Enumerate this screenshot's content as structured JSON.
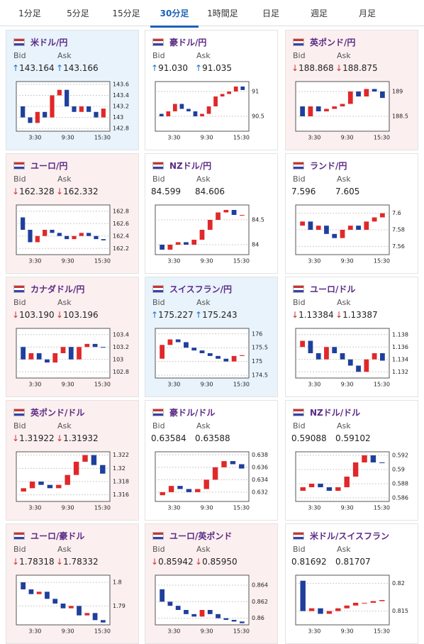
{
  "tabs": [
    "1分足",
    "5分足",
    "15分足",
    "30分足",
    "1時間足",
    "日足",
    "週足",
    "月足"
  ],
  "active_tab": 3,
  "panels": [
    {
      "title": "米ドル/円",
      "background": "#e8f3fc",
      "bid_label": "Bid",
      "ask_label": "Ask",
      "trend": "↑",
      "bid": "143.164",
      "ask": "143.166",
      "chart": {
        "ylim": [
          142.75,
          143.65
        ],
        "yticks": [
          142.8,
          143,
          143.2,
          143.4,
          143.6
        ],
        "x_labels": [
          "3:30",
          "9:30",
          "15:30"
        ],
        "closes": [
          143.2,
          143.0,
          142.9,
          143.1,
          143.0,
          143.4,
          143.5,
          143.2,
          143.1,
          143.2,
          143.1,
          143.0,
          143.16
        ]
      }
    },
    {
      "title": "豪ドル/円",
      "background": "#ffffff",
      "bid_label": "Bid",
      "ask_label": "Ask",
      "trend": "↑",
      "bid": "91.030",
      "ask": "91.035",
      "chart": {
        "ylim": [
          90.2,
          91.2
        ],
        "yticks": [
          90.5,
          91
        ],
        "x_labels": [
          "3:30",
          "9:30",
          "15:30"
        ],
        "closes": [
          90.55,
          90.5,
          90.6,
          90.75,
          90.65,
          90.6,
          90.5,
          90.55,
          90.7,
          90.9,
          90.95,
          91.0,
          91.1,
          91.03
        ]
      }
    },
    {
      "title": "英ポンド/円",
      "background": "#fcefef",
      "bid_label": "Bid",
      "ask_label": "Ask",
      "trend": "↓",
      "bid": "188.868",
      "ask": "188.875",
      "chart": {
        "ylim": [
          188.2,
          189.2
        ],
        "yticks": [
          188.5,
          189
        ],
        "x_labels": [
          "3:30",
          "9:30",
          "15:30"
        ],
        "closes": [
          188.7,
          188.5,
          188.7,
          188.6,
          188.65,
          188.7,
          188.75,
          189.0,
          188.9,
          189.05,
          189.0,
          188.87
        ]
      }
    },
    {
      "title": "ユーロ/円",
      "background": "#fcefef",
      "bid_label": "Bid",
      "ask_label": "Ask",
      "trend": "↓",
      "bid": "162.328",
      "ask": "162.332",
      "chart": {
        "ylim": [
          162.1,
          162.9
        ],
        "yticks": [
          162.2,
          162.4,
          162.6,
          162.8
        ],
        "x_labels": [
          "3:30",
          "9:30",
          "15:30"
        ],
        "closes": [
          162.7,
          162.5,
          162.3,
          162.4,
          162.5,
          162.45,
          162.4,
          162.35,
          162.4,
          162.45,
          162.4,
          162.35,
          162.33
        ]
      }
    },
    {
      "title": "NZドル/円",
      "background": "#ffffff",
      "bid_label": "Bid",
      "ask_label": "Ask",
      "bid": "84.599",
      "ask": "84.606",
      "chart": {
        "ylim": [
          83.8,
          84.8
        ],
        "yticks": [
          84,
          84.5
        ],
        "x_labels": [
          "3:30",
          "9:30",
          "15:30"
        ],
        "closes": [
          84.0,
          83.9,
          84.0,
          84.05,
          84.0,
          84.1,
          84.3,
          84.5,
          84.65,
          84.7,
          84.6,
          84.6
        ]
      }
    },
    {
      "title": "ランド/円",
      "background": "#ffffff",
      "bid_label": "Bid",
      "ask_label": "Ask",
      "bid": "7.596",
      "ask": "7.605",
      "chart": {
        "ylim": [
          7.55,
          7.61
        ],
        "yticks": [
          7.56,
          7.58,
          7.6
        ],
        "x_labels": [
          "3:30",
          "9:30",
          "15:30"
        ],
        "closes": [
          7.585,
          7.59,
          7.58,
          7.585,
          7.575,
          7.57,
          7.58,
          7.585,
          7.58,
          7.59,
          7.595,
          7.6
        ]
      }
    },
    {
      "title": "カナダドル/円",
      "background": "#fcefef",
      "bid_label": "Bid",
      "ask_label": "Ask",
      "trend": "↓",
      "bid": "103.190",
      "ask": "103.196",
      "chart": {
        "ylim": [
          102.7,
          103.5
        ],
        "yticks": [
          102.8,
          103,
          103.2,
          103.4
        ],
        "x_labels": [
          "3:30",
          "9:30",
          "15:30"
        ],
        "closes": [
          103.2,
          103.0,
          103.1,
          103.0,
          102.95,
          103.1,
          103.2,
          103.0,
          103.2,
          103.25,
          103.2,
          103.19
        ]
      }
    },
    {
      "title": "スイスフラン/円",
      "background": "#e8f3fc",
      "bid_label": "Bid",
      "ask_label": "Ask",
      "trend": "↑",
      "bid": "175.227",
      "ask": "175.243",
      "chart": {
        "ylim": [
          174.4,
          176.2
        ],
        "yticks": [
          174.5,
          175,
          175.5,
          176
        ],
        "x_labels": [
          "3:30",
          "9:30",
          "15:30"
        ],
        "closes": [
          175.1,
          175.6,
          175.8,
          175.7,
          175.5,
          175.4,
          175.3,
          175.2,
          175.1,
          175.0,
          175.2,
          175.23
        ]
      }
    },
    {
      "title": "ユーロ/ドル",
      "background": "#ffffff",
      "bid_label": "Bid",
      "ask_label": "Ask",
      "trend": "↓",
      "bid": "1.13384",
      "ask": "1.13387",
      "chart": {
        "ylim": [
          1.131,
          1.139
        ],
        "yticks": [
          1.132,
          1.134,
          1.136,
          1.138
        ],
        "x_labels": [
          "3:30",
          "9:30",
          "15:30"
        ],
        "closes": [
          1.136,
          1.137,
          1.135,
          1.134,
          1.136,
          1.135,
          1.134,
          1.133,
          1.132,
          1.134,
          1.135,
          1.1338
        ]
      }
    },
    {
      "title": "英ポンド/ドル",
      "background": "#fcefef",
      "bid_label": "Bid",
      "ask_label": "Ask",
      "trend": "↓",
      "bid": "1.31922",
      "ask": "1.31932",
      "chart": {
        "ylim": [
          1.315,
          1.3225
        ],
        "yticks": [
          1.316,
          1.318,
          1.32,
          1.322
        ],
        "x_labels": [
          "3:30",
          "9:30",
          "15:30"
        ],
        "closes": [
          1.3165,
          1.317,
          1.318,
          1.3175,
          1.317,
          1.3175,
          1.319,
          1.321,
          1.322,
          1.3205,
          1.3192
        ]
      }
    },
    {
      "title": "豪ドル/ドル",
      "background": "#ffffff",
      "bid_label": "Bid",
      "ask_label": "Ask",
      "bid": "0.63584",
      "ask": "0.63588",
      "chart": {
        "ylim": [
          0.6305,
          0.6385
        ],
        "yticks": [
          0.632,
          0.634,
          0.636,
          0.638
        ],
        "x_labels": [
          "3:30",
          "9:30",
          "15:30"
        ],
        "closes": [
          0.6315,
          0.632,
          0.633,
          0.6325,
          0.632,
          0.6325,
          0.634,
          0.636,
          0.637,
          0.6365,
          0.6358
        ]
      }
    },
    {
      "title": "NZドル/ドル",
      "background": "#ffffff",
      "bid_label": "Bid",
      "ask_label": "Ask",
      "bid": "0.59088",
      "ask": "0.59102",
      "chart": {
        "ylim": [
          0.5855,
          0.5925
        ],
        "yticks": [
          0.586,
          0.588,
          0.59,
          0.592
        ],
        "x_labels": [
          "3:30",
          "9:30",
          "15:30"
        ],
        "closes": [
          0.587,
          0.5875,
          0.588,
          0.5875,
          0.587,
          0.5875,
          0.589,
          0.591,
          0.592,
          0.591,
          0.5909
        ]
      }
    },
    {
      "title": "ユーロ/豪ドル",
      "background": "#fcefef",
      "bid_label": "Bid",
      "ask_label": "Ask",
      "trend": "↓",
      "bid": "1.78318",
      "ask": "1.78332",
      "chart": {
        "ylim": [
          1.782,
          1.803
        ],
        "yticks": [
          1.79,
          1.8
        ],
        "x_labels": [
          "3:30",
          "9:30",
          "15:30"
        ],
        "closes": [
          1.8,
          1.797,
          1.795,
          1.796,
          1.793,
          1.791,
          1.789,
          1.79,
          1.786,
          1.787,
          1.784,
          1.783
        ]
      }
    },
    {
      "title": "ユーロ/英ポンド",
      "background": "#fcefef",
      "bid_label": "Bid",
      "ask_label": "Ask",
      "trend": "↓",
      "bid": "0.85942",
      "ask": "0.85950",
      "chart": {
        "ylim": [
          0.8592,
          0.8652
        ],
        "yticks": [
          0.86,
          0.862,
          0.864
        ],
        "x_labels": [
          "3:30",
          "9:30",
          "15:30"
        ],
        "closes": [
          0.8635,
          0.862,
          0.8615,
          0.861,
          0.8605,
          0.8602,
          0.861,
          0.8605,
          0.86,
          0.8598,
          0.8596,
          0.8594
        ]
      }
    },
    {
      "title": "米ドル/スイスフラン",
      "background": "#ffffff",
      "bid_label": "Bid",
      "ask_label": "Ask",
      "bid": "0.81692",
      "ask": "0.81707",
      "chart": {
        "ylim": [
          0.8125,
          0.8215
        ],
        "yticks": [
          0.815,
          0.82
        ],
        "x_labels": [
          "3:30",
          "9:30",
          "15:30"
        ],
        "closes": [
          0.8205,
          0.815,
          0.8155,
          0.8145,
          0.815,
          0.8155,
          0.816,
          0.8165,
          0.8165,
          0.8168,
          0.817
        ]
      }
    }
  ]
}
